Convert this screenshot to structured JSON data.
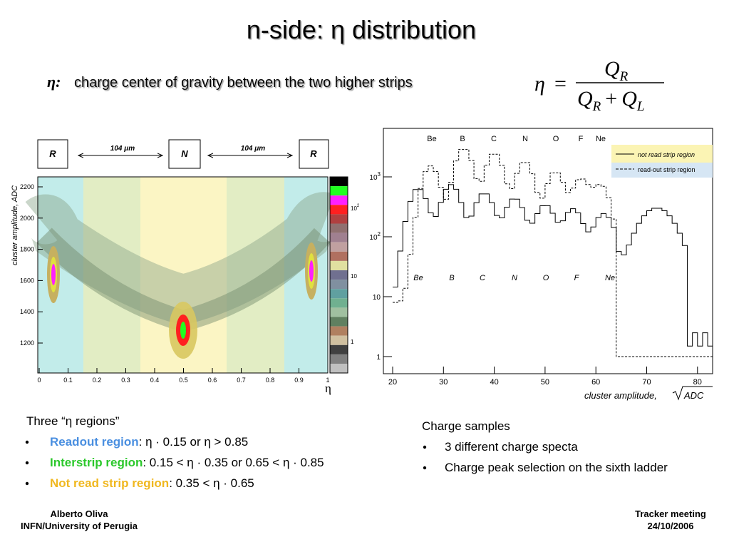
{
  "title": "n-side: η distribution",
  "definition": {
    "symbol": "η:",
    "text": "charge center of gravity between the two higher strips"
  },
  "formula": {
    "lhs": "η",
    "eq": "=",
    "numerator": {
      "q": "Q",
      "sub": "R"
    },
    "denominator": {
      "first": {
        "q": "Q",
        "sub": "R"
      },
      "op": "+",
      "second": {
        "q": "Q",
        "sub": "L"
      }
    }
  },
  "left_plot": {
    "strips": [
      "R",
      "N",
      "R"
    ],
    "pitch": [
      "104 μm",
      "104 μm"
    ],
    "y_label": "cluster amplitude, ADC",
    "yticks": [
      2200,
      2000,
      1800,
      1600,
      1400,
      1200
    ],
    "xticks": [
      0,
      0.1,
      0.2,
      0.3,
      0.4,
      0.5,
      0.6,
      0.7,
      0.8,
      0.9,
      1
    ],
    "x_label": "η",
    "colorbar": [
      {
        "base": "10",
        "exp": "2"
      },
      {
        "base": "10",
        "exp": ""
      },
      {
        "base": "1",
        "exp": ""
      }
    ]
  },
  "right_plot": {
    "peaks_top": [
      "Be",
      "B",
      "C",
      "N",
      "O",
      "F",
      "Ne"
    ],
    "peaks_bottom": [
      "Be",
      "B",
      "C",
      "N",
      "O",
      "F",
      "Ne"
    ],
    "legend": [
      "not read strip region",
      "read-out strip region"
    ],
    "yticks": [
      {
        "base": "10",
        "exp": "3"
      },
      {
        "base": "10",
        "exp": "2"
      },
      {
        "base": "10",
        "exp": ""
      },
      {
        "base": "1",
        "exp": ""
      }
    ],
    "xticks": [
      20,
      30,
      40,
      50,
      60,
      70,
      80
    ],
    "x_label": "cluster amplitude,",
    "x_unit": "ADC"
  },
  "regions": {
    "heading": "Three “η regions”",
    "items": [
      {
        "name": "Readout region",
        "rest": ": η · 0.15 or η > 0.85"
      },
      {
        "name": "Interstrip region",
        "rest": ": 0.15 < η · 0.35 or 0.65 < η · 0.85"
      },
      {
        "name": "Not read strip region",
        "rest": ": 0.35 < η · 0.65"
      }
    ]
  },
  "samples": {
    "heading": "Charge samples",
    "items": [
      "3 different charge specta",
      "Charge peak selection on the sixth ladder"
    ]
  },
  "footer": {
    "author": "Alberto Oliva",
    "affiliation": "INFN/University of Perugia",
    "event": "Tracker meeting",
    "date": "24/10/2006"
  }
}
